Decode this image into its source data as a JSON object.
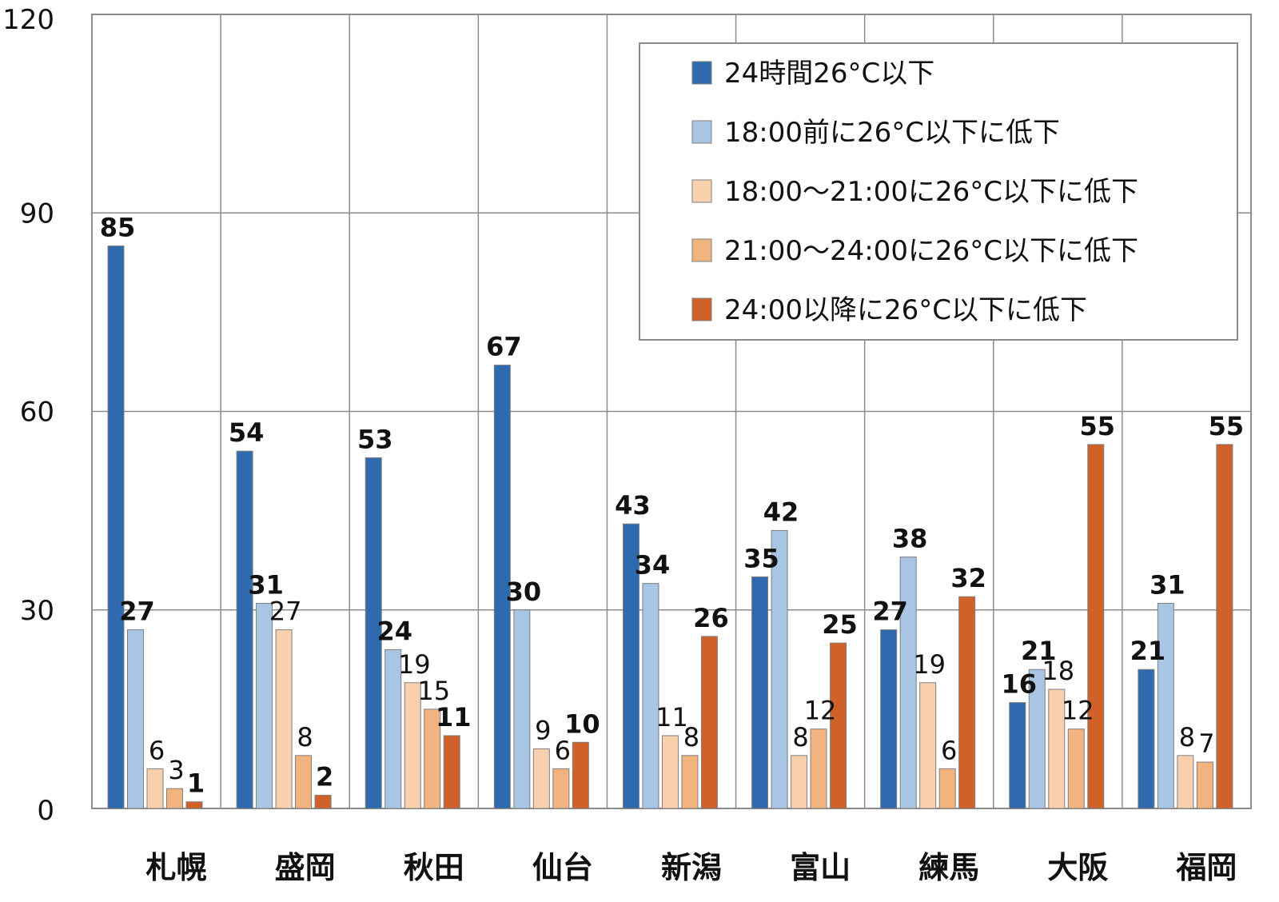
{
  "chart_data": {
    "type": "bar",
    "categories": [
      "札幌",
      "盛岡",
      "秋田",
      "仙台",
      "新潟",
      "富山",
      "練馬",
      "大阪",
      "福岡"
    ],
    "series": [
      {
        "name": "24時間26°C以下",
        "color": "#2e6aad",
        "bold_labels": true,
        "values": [
          85,
          54,
          53,
          67,
          43,
          35,
          27,
          16,
          21
        ]
      },
      {
        "name": "18:00前に26°C以下に低下",
        "color": "#a9c5e4",
        "bold_labels": true,
        "values": [
          27,
          31,
          24,
          30,
          34,
          42,
          38,
          21,
          31
        ]
      },
      {
        "name": "18:00～21:00に26°C以下に低下",
        "color": "#f9d0ae",
        "bold_labels": false,
        "values": [
          6,
          27,
          19,
          9,
          11,
          8,
          19,
          18,
          8
        ]
      },
      {
        "name": "21:00～24:00に26°C以下に低下",
        "color": "#f2b47f",
        "bold_labels": false,
        "values": [
          3,
          8,
          15,
          6,
          8,
          12,
          6,
          12,
          7
        ]
      },
      {
        "name": "24:00以降に26°C以下に低下",
        "color": "#cf6129",
        "bold_labels": true,
        "values": [
          1,
          2,
          11,
          10,
          26,
          25,
          32,
          55,
          55
        ]
      }
    ],
    "yticks": [
      0,
      30,
      60,
      90,
      120
    ],
    "ylim": [
      0,
      120
    ],
    "grid": true,
    "legend_position": "top-right",
    "title": "",
    "xlabel": "",
    "ylabel": ""
  }
}
